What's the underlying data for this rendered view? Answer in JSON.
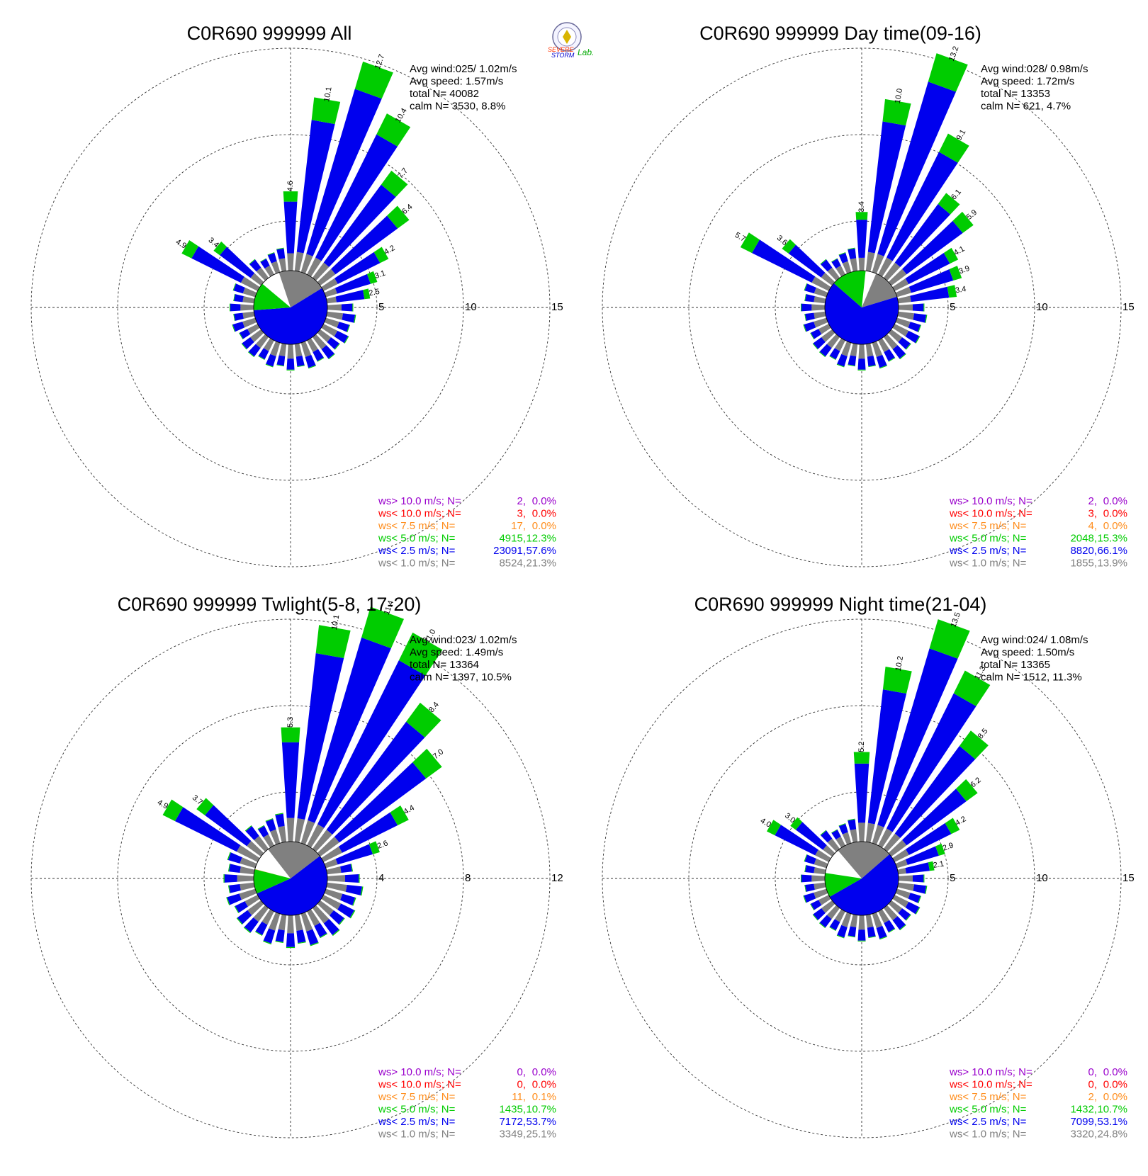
{
  "logo": {
    "line1": "SEVERE",
    "line2": "STORM",
    "line3": "Lab."
  },
  "colors": {
    "gt10": "#9900cc",
    "lt10": "#ff0000",
    "lt7_5": "#ff8c1a",
    "lt5": "#00cc00",
    "lt2_5": "#0000ee",
    "lt1": "#808080"
  },
  "chart_data": [
    {
      "type": "wind-rose",
      "title": "C0R690 999999 All",
      "stats": {
        "avg_wind": "Avg wind:025/ 1.02m/s",
        "avg_speed": "Avg speed: 1.57m/s",
        "total": "total N=      40082",
        "calm": "calm N=   3530,   8.8%"
      },
      "rings": [
        5,
        10,
        15
      ],
      "ring_labels": [
        "5",
        "10",
        "15"
      ],
      "rmax": 15,
      "calm_percent": 8.8,
      "calm_pie": [
        21.3,
        57.6,
        12.3,
        0.0
      ],
      "peaks": [
        {
          "dir": 0,
          "total": 4.6,
          "label": "4.6"
        },
        {
          "dir": 10,
          "total": 10.1,
          "label": "10.1"
        },
        {
          "dir": 20,
          "total": 12.7,
          "label": "12.7"
        },
        {
          "dir": 30,
          "total": 10.4,
          "label": "10.4"
        },
        {
          "dir": 40,
          "total": 7.7,
          "label": "7.7"
        },
        {
          "dir": 50,
          "total": 6.4,
          "label": "6.4"
        },
        {
          "dir": 60,
          "total": 4.2,
          "label": "4.2"
        },
        {
          "dir": 70,
          "total": 3.1,
          "label": "3.1"
        },
        {
          "dir": 80,
          "total": 2.5,
          "label": "2.5"
        },
        {
          "dir": 300,
          "total": 4.9,
          "label": "4.9"
        },
        {
          "dir": 310,
          "total": 3.4,
          "label": "3.4"
        }
      ],
      "legend": [
        {
          "label": "ws> 10.0 m/s; N=",
          "n": "2",
          "pct": "0.0%",
          "color_key": "gt10"
        },
        {
          "label": "ws< 10.0 m/s; N=",
          "n": "3",
          "pct": "0.0%",
          "color_key": "lt10"
        },
        {
          "label": "ws<  7.5 m/s; N=",
          "n": "17",
          "pct": "0.0%",
          "color_key": "lt7_5"
        },
        {
          "label": "ws<  5.0 m/s; N=",
          "n": "4915",
          "pct": "12.3%",
          "color_key": "lt5"
        },
        {
          "label": "ws<  2.5 m/s; N=",
          "n": "23091",
          "pct": "57.6%",
          "color_key": "lt2_5"
        },
        {
          "label": "ws<  1.0 m/s; N=",
          "n": "8524",
          "pct": "21.3%",
          "color_key": "lt1"
        }
      ]
    },
    {
      "type": "wind-rose",
      "title": "C0R690 999999 Day time(09-16)",
      "stats": {
        "avg_wind": "Avg wind:028/ 0.98m/s",
        "avg_speed": "Avg speed: 1.72m/s",
        "total": "total N=      13353",
        "calm": "calm N=    621,   4.7%"
      },
      "rings": [
        5,
        10,
        15
      ],
      "ring_labels": [
        "5",
        "10",
        "15"
      ],
      "rmax": 15,
      "calm_percent": 4.7,
      "calm_pie": [
        13.9,
        66.1,
        15.3,
        0.0
      ],
      "peaks": [
        {
          "dir": 0,
          "total": 3.4,
          "label": "3.4"
        },
        {
          "dir": 10,
          "total": 10.0,
          "label": "10.0"
        },
        {
          "dir": 20,
          "total": 13.2,
          "label": "13.2"
        },
        {
          "dir": 30,
          "total": 9.1,
          "label": "9.1"
        },
        {
          "dir": 40,
          "total": 6.1,
          "label": "6.1"
        },
        {
          "dir": 50,
          "total": 5.9,
          "label": "5.9"
        },
        {
          "dir": 60,
          "total": 4.1,
          "label": "4.1"
        },
        {
          "dir": 70,
          "total": 3.9,
          "label": "3.9"
        },
        {
          "dir": 80,
          "total": 3.4,
          "label": "3.4"
        },
        {
          "dir": 300,
          "total": 5.7,
          "label": "5.7"
        },
        {
          "dir": 310,
          "total": 3.6,
          "label": "3.6"
        }
      ],
      "legend": [
        {
          "label": "ws> 10.0 m/s; N=",
          "n": "2",
          "pct": "0.0%",
          "color_key": "gt10"
        },
        {
          "label": "ws< 10.0 m/s; N=",
          "n": "3",
          "pct": "0.0%",
          "color_key": "lt10"
        },
        {
          "label": "ws<  7.5 m/s; N=",
          "n": "4",
          "pct": "0.0%",
          "color_key": "lt7_5"
        },
        {
          "label": "ws<  5.0 m/s; N=",
          "n": "2048",
          "pct": "15.3%",
          "color_key": "lt5"
        },
        {
          "label": "ws<  2.5 m/s; N=",
          "n": "8820",
          "pct": "66.1%",
          "color_key": "lt2_5"
        },
        {
          "label": "ws<  1.0 m/s; N=",
          "n": "1855",
          "pct": "13.9%",
          "color_key": "lt1"
        }
      ]
    },
    {
      "type": "wind-rose",
      "title": "C0R690 999999 Twlight(5-8, 17-20)",
      "stats": {
        "avg_wind": "Avg wind:023/ 1.02m/s",
        "avg_speed": "Avg speed: 1.49m/s",
        "total": "total N=      13364",
        "calm": "calm N=   1397,  10.5%"
      },
      "rings": [
        4,
        8,
        12
      ],
      "ring_labels": [
        "4",
        "8",
        "12"
      ],
      "rmax": 12,
      "calm_percent": 10.5,
      "calm_pie": [
        25.1,
        53.7,
        10.7,
        0.1
      ],
      "peaks": [
        {
          "dir": 0,
          "total": 5.3,
          "label": "5.3"
        },
        {
          "dir": 10,
          "total": 10.1,
          "label": "10.1"
        },
        {
          "dir": 20,
          "total": 11.4,
          "label": "11.4"
        },
        {
          "dir": 30,
          "total": 11.0,
          "label": "11.0"
        },
        {
          "dir": 40,
          "total": 8.4,
          "label": "8.4"
        },
        {
          "dir": 50,
          "total": 7.0,
          "label": "7.0"
        },
        {
          "dir": 60,
          "total": 4.4,
          "label": "4.4"
        },
        {
          "dir": 70,
          "total": 2.6,
          "label": "2.6"
        },
        {
          "dir": 300,
          "total": 4.9,
          "label": "4.9"
        },
        {
          "dir": 310,
          "total": 3.7,
          "label": "3.7"
        }
      ],
      "legend": [
        {
          "label": "ws> 10.0 m/s; N=",
          "n": "0",
          "pct": "0.0%",
          "color_key": "gt10"
        },
        {
          "label": "ws< 10.0 m/s; N=",
          "n": "0",
          "pct": "0.0%",
          "color_key": "lt10"
        },
        {
          "label": "ws<  7.5 m/s; N=",
          "n": "11",
          "pct": "0.1%",
          "color_key": "lt7_5"
        },
        {
          "label": "ws<  5.0 m/s; N=",
          "n": "1435",
          "pct": "10.7%",
          "color_key": "lt5"
        },
        {
          "label": "ws<  2.5 m/s; N=",
          "n": "7172",
          "pct": "53.7%",
          "color_key": "lt2_5"
        },
        {
          "label": "ws<  1.0 m/s; N=",
          "n": "3349",
          "pct": "25.1%",
          "color_key": "lt1"
        }
      ]
    },
    {
      "type": "wind-rose",
      "title": "C0R690 999999 Night time(21-04)",
      "stats": {
        "avg_wind": "Avg wind:024/ 1.08m/s",
        "avg_speed": "Avg speed: 1.50m/s",
        "total": "total N=      13365",
        "calm": "calm N=   1512,  11.3%"
      },
      "rings": [
        5,
        10,
        15
      ],
      "ring_labels": [
        "5",
        "10",
        "15"
      ],
      "rmax": 15,
      "calm_percent": 11.3,
      "calm_pie": [
        24.8,
        53.1,
        10.7,
        0.0
      ],
      "peaks": [
        {
          "dir": 0,
          "total": 5.2,
          "label": "5.2"
        },
        {
          "dir": 10,
          "total": 10.2,
          "label": "10.2"
        },
        {
          "dir": 20,
          "total": 13.5,
          "label": "13.5"
        },
        {
          "dir": 30,
          "total": 11.3,
          "label": "11.3"
        },
        {
          "dir": 40,
          "total": 8.5,
          "label": "8.5"
        },
        {
          "dir": 50,
          "total": 6.2,
          "label": "6.2"
        },
        {
          "dir": 60,
          "total": 4.2,
          "label": "4.2"
        },
        {
          "dir": 70,
          "total": 2.9,
          "label": "2.9"
        },
        {
          "dir": 80,
          "total": 2.1,
          "label": "2.1"
        },
        {
          "dir": 300,
          "total": 4.0,
          "label": "4.0"
        },
        {
          "dir": 310,
          "total": 3.0,
          "label": "3.0"
        }
      ],
      "legend": [
        {
          "label": "ws> 10.0 m/s; N=",
          "n": "0",
          "pct": "0.0%",
          "color_key": "gt10"
        },
        {
          "label": "ws< 10.0 m/s; N=",
          "n": "0",
          "pct": "0.0%",
          "color_key": "lt10"
        },
        {
          "label": "ws<  7.5 m/s; N=",
          "n": "2",
          "pct": "0.0%",
          "color_key": "lt7_5"
        },
        {
          "label": "ws<  5.0 m/s; N=",
          "n": "1432",
          "pct": "10.7%",
          "color_key": "lt5"
        },
        {
          "label": "ws<  2.5 m/s; N=",
          "n": "7099",
          "pct": "53.1%",
          "color_key": "lt2_5"
        },
        {
          "label": "ws<  1.0 m/s; N=",
          "n": "3320",
          "pct": "24.8%",
          "color_key": "lt1"
        }
      ]
    }
  ]
}
